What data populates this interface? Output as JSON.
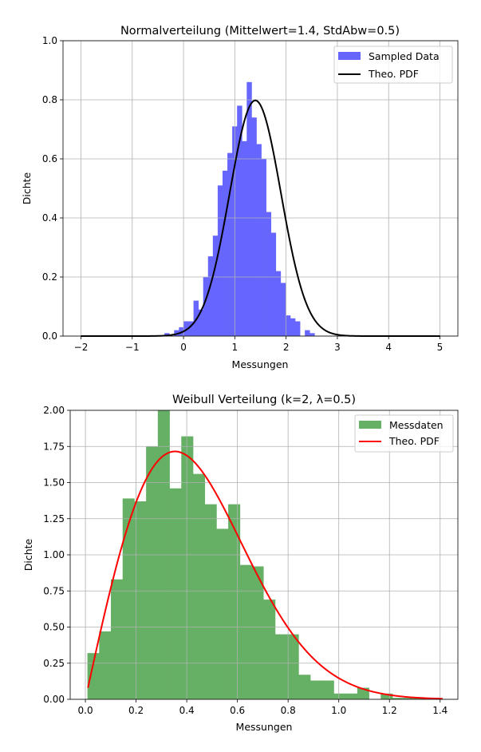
{
  "chart_data": [
    {
      "type": "bar",
      "title": "Normalverteilung (Mittelwert=1.4, StdAbw=0.5)",
      "xlabel": "Messungen",
      "ylabel": "Dichte",
      "xlim": [
        -2.35,
        5.35
      ],
      "ylim": [
        0,
        1.0
      ],
      "xticks": [
        -2,
        -1,
        0,
        1,
        2,
        3,
        4,
        5
      ],
      "yticks": [
        0.0,
        0.2,
        0.4,
        0.6,
        0.8,
        1.0
      ],
      "xtick_labels": [
        "−2",
        "−1",
        "0",
        "1",
        "2",
        "3",
        "4",
        "5"
      ],
      "ytick_labels": [
        "0.0",
        "0.2",
        "0.4",
        "0.6",
        "0.8",
        "1.0"
      ],
      "grid": true,
      "legend_position": "top-right",
      "histogram": {
        "name": "Sampled Data",
        "color": "#6666ff",
        "bin_start": -0.372,
        "bin_width": 0.0944,
        "values": [
          0.01,
          0.0,
          0.02,
          0.03,
          0.05,
          0.05,
          0.12,
          0.09,
          0.2,
          0.27,
          0.34,
          0.51,
          0.56,
          0.62,
          0.71,
          0.78,
          0.66,
          0.86,
          0.74,
          0.65,
          0.6,
          0.42,
          0.35,
          0.22,
          0.18,
          0.07,
          0.06,
          0.05,
          0.0,
          0.02,
          0.01
        ]
      },
      "curve": {
        "name": "Theo. PDF",
        "color": "#000000",
        "x_range": [
          -2,
          5
        ],
        "mean": 1.4,
        "std": 0.5
      }
    },
    {
      "type": "bar",
      "title": "Weibull Verteilung (k=2, λ=0.5)",
      "xlabel": "Messungen",
      "ylabel": "Dichte",
      "xlim": [
        -0.06,
        1.47
      ],
      "ylim": [
        0,
        2.0
      ],
      "xticks": [
        0.0,
        0.2,
        0.4,
        0.6,
        0.8,
        1.0,
        1.2,
        1.4
      ],
      "yticks": [
        0.0,
        0.25,
        0.5,
        0.75,
        1.0,
        1.25,
        1.5,
        1.75,
        2.0
      ],
      "xtick_labels": [
        "0.0",
        "0.2",
        "0.4",
        "0.6",
        "0.8",
        "1.0",
        "1.2",
        "1.4"
      ],
      "ytick_labels": [
        "0.00",
        "0.25",
        "0.50",
        "0.75",
        "1.00",
        "1.25",
        "1.50",
        "1.75",
        "2.00"
      ],
      "grid": true,
      "legend_position": "top-right",
      "histogram": {
        "name": "Messdaten",
        "color": "#66b066",
        "bin_start": 0.008,
        "bin_width": 0.0463,
        "values": [
          0.32,
          0.47,
          0.83,
          1.39,
          1.37,
          1.75,
          2.0,
          1.46,
          1.82,
          1.56,
          1.35,
          1.18,
          1.35,
          0.93,
          0.92,
          0.69,
          0.45,
          0.45,
          0.17,
          0.13,
          0.13,
          0.04,
          0.04,
          0.08,
          0.0,
          0.04,
          0.01,
          0.01,
          0.01,
          0.01
        ]
      },
      "curve": {
        "name": "Theo. PDF",
        "color": "#ff0000",
        "x_range": [
          0.01,
          1.41
        ],
        "k": 2,
        "lambda": 0.5
      }
    }
  ]
}
